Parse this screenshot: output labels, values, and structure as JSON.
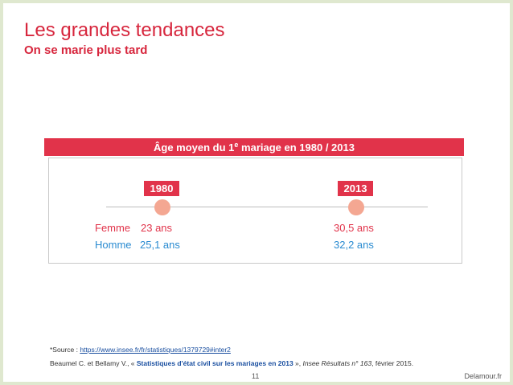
{
  "header": {
    "title": "Les grandes tendances",
    "subtitle": "On se marie plus tard"
  },
  "infographic": {
    "banner_prefix": "Âge moyen du 1",
    "banner_sup": "e",
    "banner_suffix": " mariage en 1980 / 2013",
    "years": [
      "1980",
      "2013"
    ],
    "row_femme_label": "Femme",
    "row_homme_label": "Homme",
    "values": {
      "femme_1980": "23 ans",
      "homme_1980": "25,1 ans",
      "femme_2013": "30,5 ans",
      "homme_2013": "32,2 ans"
    },
    "colors": {
      "accent_red": "#e1334a",
      "dot_salmon": "#f4a792",
      "homme_blue": "#2a8bd1"
    }
  },
  "footnotes": {
    "source_prefix": "*Source : ",
    "source_url": "https://www.insee.fr/fr/statistiques/1379729#inter2",
    "ref_prefix": "Beaumel C. et Bellamy V., « ",
    "ref_link": "Statistiques d'état civil sur les mariages en 2013",
    "ref_middle": " », ",
    "ref_journal": "Insee Résultats n° 163",
    "ref_suffix": ", février 2015."
  },
  "footer": {
    "page_number": "11",
    "brand": "Delamour.fr"
  }
}
